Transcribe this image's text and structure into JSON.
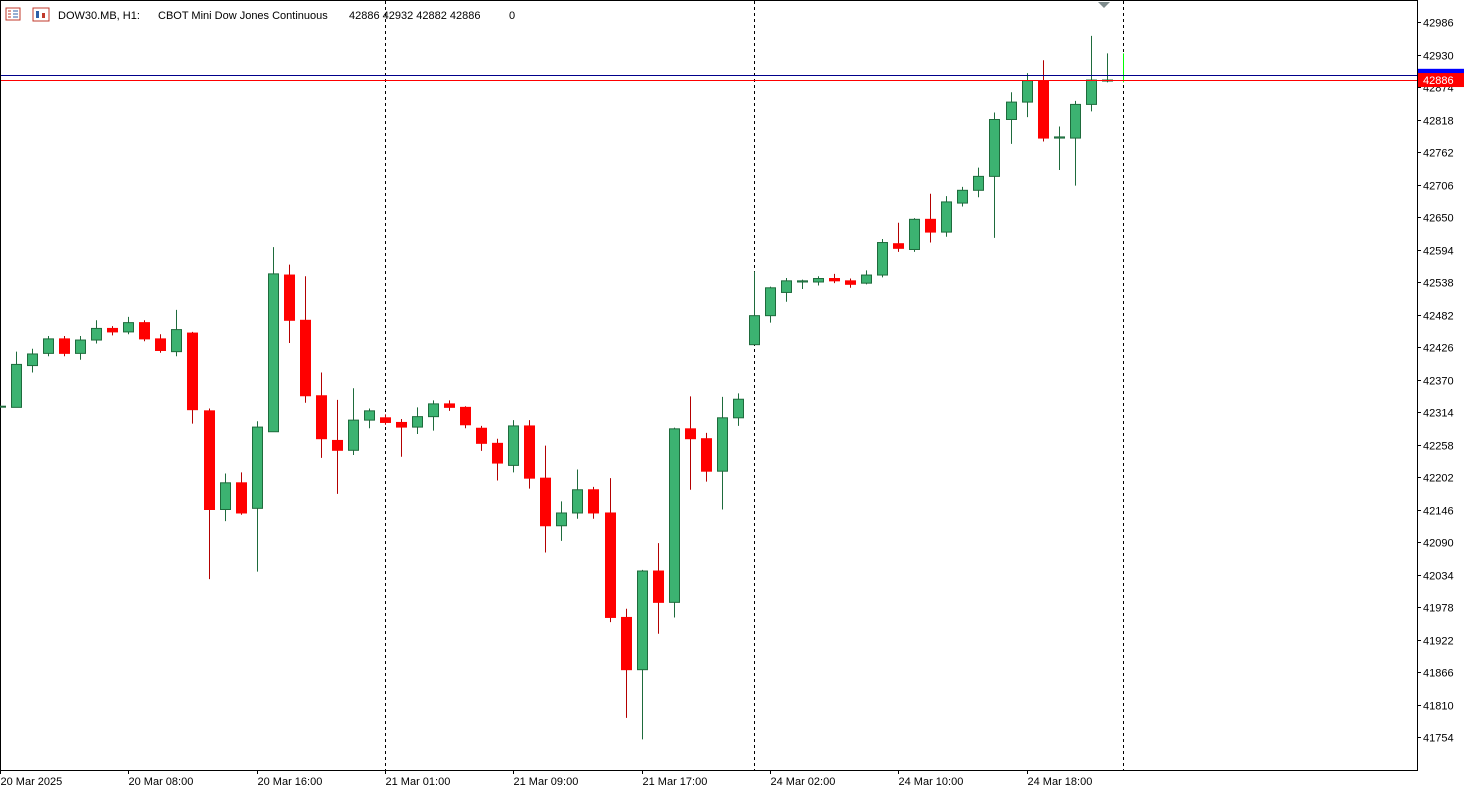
{
  "header": {
    "symbol": "DOW30.MB, H1:",
    "description": "CBOT Mini Dow Jones Continuous",
    "ohlc": "42886 42932 42882 42886",
    "volume": "0",
    "icons": [
      "list-icon",
      "chart-window-icon"
    ]
  },
  "colors": {
    "bull": "#3cb371",
    "bear": "#ff0000",
    "bull_outline": "#1e6b3c",
    "bear_wick": "#b40000",
    "bid_line": "#ff0000",
    "ask_line": "#00008b",
    "ask_box": "#0000ff",
    "bid_box": "#ff0000",
    "grid": "#000000",
    "last_tick": "#00ff00"
  },
  "chart_data": {
    "type": "candlestick",
    "timeframe": "H1",
    "y_ticks": [
      42986,
      42930,
      42874,
      42818,
      42762,
      42706,
      42650,
      42594,
      42538,
      42482,
      42426,
      42370,
      42314,
      42258,
      42202,
      42146,
      42090,
      42034,
      41978,
      41922,
      41866,
      41810,
      41754
    ],
    "ylim": [
      41720,
      43015
    ],
    "x_labels": [
      {
        "slot": 0,
        "text": "20 Mar 2025"
      },
      {
        "slot": 8,
        "text": "20 Mar 08:00"
      },
      {
        "slot": 16,
        "text": "20 Mar 16:00"
      },
      {
        "slot": 24,
        "text": "21 Mar 01:00"
      },
      {
        "slot": 32,
        "text": "21 Mar 09:00"
      },
      {
        "slot": 40,
        "text": "21 Mar 17:00"
      },
      {
        "slot": 48,
        "text": "24 Mar 02:00"
      },
      {
        "slot": 56,
        "text": "24 Mar 10:00"
      },
      {
        "slot": 64,
        "text": "24 Mar 18:00"
      }
    ],
    "day_separators": [
      24,
      47,
      70
    ],
    "current_bid_label": "42886",
    "current_bid": 42886,
    "current_ask": 42895,
    "candles": [
      [
        0,
        42324,
        42324,
        42324,
        42324
      ],
      [
        1,
        42322,
        42418,
        42322,
        42396
      ],
      [
        2,
        42394,
        42423,
        42382,
        42414
      ],
      [
        3,
        42415,
        42445,
        42410,
        42440
      ],
      [
        4,
        42440,
        42445,
        42410,
        42415
      ],
      [
        5,
        42415,
        42445,
        42404,
        42438
      ],
      [
        6,
        42438,
        42472,
        42432,
        42458
      ],
      [
        7,
        42458,
        42462,
        42446,
        42452
      ],
      [
        8,
        42452,
        42478,
        42448,
        42468
      ],
      [
        9,
        42468,
        42472,
        42436,
        42440
      ],
      [
        10,
        42440,
        42448,
        42416,
        42420
      ],
      [
        11,
        42418,
        42490,
        42410,
        42456
      ],
      [
        12,
        42450,
        42452,
        42294,
        42318
      ],
      [
        13,
        42316,
        42320,
        42026,
        42146
      ],
      [
        14,
        42146,
        42208,
        42126,
        42192
      ],
      [
        15,
        42192,
        42210,
        42137,
        42140
      ],
      [
        16,
        42148,
        42298,
        42039,
        42288
      ],
      [
        17,
        42280,
        42598,
        42280,
        42552
      ],
      [
        18,
        42550,
        42568,
        42433,
        42472
      ],
      [
        19,
        42472,
        42548,
        42330,
        42342
      ],
      [
        20,
        42342,
        42382,
        42235,
        42268
      ],
      [
        21,
        42265,
        42335,
        42173,
        42248
      ],
      [
        22,
        42248,
        42355,
        42240,
        42300
      ],
      [
        23,
        42300,
        42320,
        42286,
        42316
      ],
      [
        24,
        42304,
        42310,
        42292,
        42296
      ],
      [
        25,
        42296,
        42302,
        42237,
        42288
      ],
      [
        26,
        42288,
        42322,
        42276,
        42306
      ],
      [
        27,
        42306,
        42334,
        42282,
        42328
      ],
      [
        28,
        42328,
        42334,
        42316,
        42322
      ],
      [
        29,
        42322,
        42324,
        42286,
        42292
      ],
      [
        30,
        42286,
        42290,
        42247,
        42260
      ],
      [
        31,
        42260,
        42268,
        42196,
        42226
      ],
      [
        32,
        42222,
        42300,
        42210,
        42290
      ],
      [
        33,
        42290,
        42300,
        42182,
        42200
      ],
      [
        34,
        42200,
        42256,
        42072,
        42118
      ],
      [
        35,
        42118,
        42160,
        42092,
        42140
      ],
      [
        36,
        42140,
        42215,
        42130,
        42180
      ],
      [
        37,
        42180,
        42185,
        42130,
        42140
      ],
      [
        38,
        42140,
        42200,
        41952,
        41960
      ],
      [
        39,
        41960,
        41975,
        41787,
        41870
      ],
      [
        40,
        41870,
        42042,
        41750,
        42040
      ],
      [
        41,
        42040,
        42088,
        41932,
        41986
      ],
      [
        42,
        41986,
        42287,
        41960,
        42285
      ],
      [
        43,
        42285,
        42341,
        42180,
        42268
      ],
      [
        44,
        42268,
        42278,
        42194,
        42212
      ],
      [
        45,
        42212,
        42340,
        42146,
        42304
      ],
      [
        46,
        42304,
        42346,
        42290,
        42336
      ],
      [
        47,
        42430,
        42556,
        42430,
        42480
      ],
      [
        48,
        42480,
        42530,
        42468,
        42528
      ],
      [
        49,
        42520,
        42545,
        42504,
        42540
      ],
      [
        50,
        42538,
        42542,
        42526,
        42540
      ],
      [
        51,
        42538,
        42548,
        42532,
        42544
      ],
      [
        52,
        42544,
        42552,
        42536,
        42540
      ],
      [
        53,
        42540,
        42544,
        42528,
        42534
      ],
      [
        54,
        42536,
        42558,
        42534,
        42550
      ],
      [
        55,
        42550,
        42612,
        42546,
        42606
      ],
      [
        56,
        42604,
        42640,
        42590,
        42596
      ],
      [
        57,
        42594,
        42648,
        42590,
        42646
      ],
      [
        58,
        42646,
        42690,
        42606,
        42624
      ],
      [
        59,
        42624,
        42686,
        42616,
        42676
      ],
      [
        60,
        42674,
        42702,
        42668,
        42696
      ],
      [
        61,
        42696,
        42735,
        42684,
        42720
      ],
      [
        62,
        42720,
        42830,
        42614,
        42818
      ],
      [
        63,
        42818,
        42865,
        42776,
        42848
      ],
      [
        64,
        42848,
        42898,
        42822,
        42885
      ],
      [
        65,
        42885,
        42920,
        42780,
        42786
      ],
      [
        66,
        42786,
        42806,
        42731,
        42788
      ],
      [
        67,
        42786,
        42850,
        42704,
        42844
      ],
      [
        68,
        42844,
        42962,
        42832,
        42886
      ],
      [
        69,
        42886,
        42932,
        42882,
        42886
      ]
    ]
  }
}
